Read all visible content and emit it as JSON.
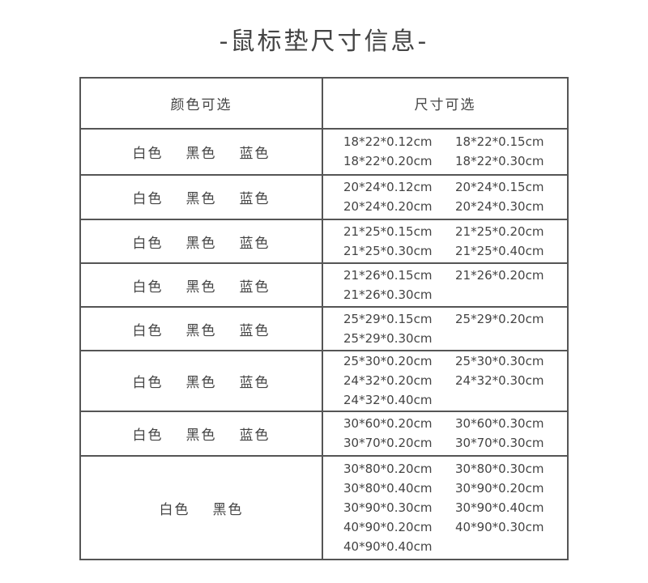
{
  "title": "-鼠标垫尺寸信息-",
  "headers": {
    "colors": "颜色可选",
    "sizes": "尺寸可选"
  },
  "rows": [
    {
      "colors": [
        "白色",
        "黑色",
        "蓝色"
      ],
      "sizes": [
        "18*22*0.12cm",
        "18*22*0.15cm",
        "18*22*0.20cm",
        "18*22*0.30cm"
      ]
    },
    {
      "colors": [
        "白色",
        "黑色",
        "蓝色"
      ],
      "sizes": [
        "20*24*0.12cm",
        "20*24*0.15cm",
        "20*24*0.20cm",
        "20*24*0.30cm"
      ]
    },
    {
      "colors": [
        "白色",
        "黑色",
        "蓝色"
      ],
      "sizes": [
        "21*25*0.15cm",
        "21*25*0.20cm",
        "21*25*0.30cm",
        "21*25*0.40cm"
      ]
    },
    {
      "colors": [
        "白色",
        "黑色",
        "蓝色"
      ],
      "sizes": [
        "21*26*0.15cm",
        "21*26*0.20cm",
        "21*26*0.30cm"
      ]
    },
    {
      "colors": [
        "白色",
        "黑色",
        "蓝色"
      ],
      "sizes": [
        "25*29*0.15cm",
        "25*29*0.20cm",
        "25*29*0.30cm"
      ]
    },
    {
      "colors": [
        "白色",
        "黑色",
        "蓝色"
      ],
      "sizes": [
        "25*30*0.20cm",
        "25*30*0.30cm",
        "24*32*0.20cm",
        "24*32*0.30cm",
        "24*32*0.40cm"
      ]
    },
    {
      "colors": [
        "白色",
        "黑色",
        "蓝色"
      ],
      "sizes": [
        "30*60*0.20cm",
        "30*60*0.30cm",
        "30*70*0.20cm",
        "30*70*0.30cm"
      ]
    },
    {
      "colors": [
        "白色",
        "黑色"
      ],
      "sizes": [
        "30*80*0.20cm",
        "30*80*0.30cm",
        "30*80*0.40cm",
        "30*90*0.20cm",
        "30*90*0.30cm",
        "30*90*0.40cm",
        "40*90*0.20cm",
        "40*90*0.30cm",
        "40*90*0.40cm"
      ]
    }
  ]
}
